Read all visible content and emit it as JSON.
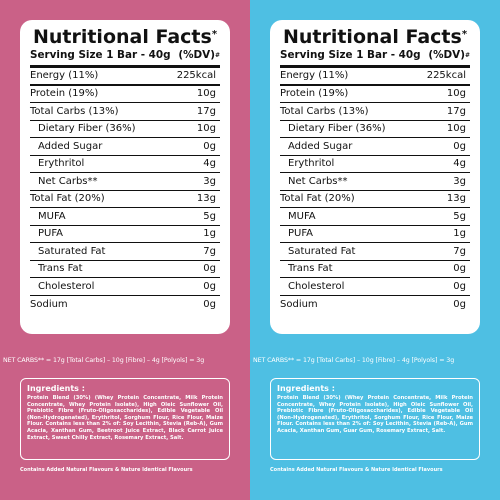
{
  "colors": {
    "left_bg": "#ca6187",
    "right_bg": "#4ebfe3",
    "card_bg": "#ffffff",
    "text": "#111111"
  },
  "panels": [
    {
      "title": "Nutritional Facts",
      "title_mark": "*",
      "serving_label": "Serving Size 1 Bar - 40g",
      "dv_label": "(%DV)",
      "dv_mark": "#",
      "rows": [
        {
          "label": "Energy (11%)",
          "value": "225kcal"
        },
        {
          "label": "Protein (19%)",
          "value": "10g"
        },
        {
          "label": "Total Carbs (13%)",
          "value": "17g"
        },
        {
          "label": "Dietary Fiber (36%)",
          "value": "10g"
        },
        {
          "label": "Added Sugar",
          "value": "0g"
        },
        {
          "label": "Erythritol",
          "value": "4g"
        },
        {
          "label": "Net Carbs**",
          "value": "3g"
        },
        {
          "label": "Total Fat (20%)",
          "value": "13g"
        },
        {
          "label": "MUFA",
          "value": "5g"
        },
        {
          "label": "PUFA",
          "value": "1g"
        },
        {
          "label": "Saturated Fat",
          "value": "7g"
        },
        {
          "label": "Trans Fat",
          "value": "0g"
        },
        {
          "label": "Cholesterol",
          "value": "0g"
        },
        {
          "label": "Sodium",
          "value": "0g"
        }
      ],
      "net_carbs_note": "NET CARBS** = 17g [Total Carbs] – 10g [Fibre] – 4g [Polyols] = 3g",
      "ingredients_title": "Ingredients :",
      "ingredients_text": "Protein Blend (30%) (Whey Protein Concentrate, Milk Protein Concentrate, Whey Protein Isolate), High Oleic Sunflower Oil, Prebiotic Fibre (Fruto-Oligosaccharides), Edible Vegetable Oil (Non-Hydrogenated), Erythritol, Sorghum Flour, Rice Flour, Maize Flour. Contains less than 2% of: Soy Lecithin, Stevia (Reb-A), Gum Acacia, Xanthan Gum, Beetroot Juice Extract, Black Carrot Juice Extract, Sweet Chilly Extract, Rosemary Extract, Salt.",
      "contains_note": "Contains Added Natural Flavours & Nature Identical Flavours"
    },
    {
      "title": "Nutritional Facts",
      "title_mark": "*",
      "serving_label": "Serving Size 1 Bar - 40g",
      "dv_label": "(%DV)",
      "dv_mark": "#",
      "rows": [
        {
          "label": "Energy (11%)",
          "value": "225kcal"
        },
        {
          "label": "Protein (19%)",
          "value": "10g"
        },
        {
          "label": "Total Carbs (13%)",
          "value": "17g"
        },
        {
          "label": "Dietary Fiber (36%)",
          "value": "10g"
        },
        {
          "label": "Added Sugar",
          "value": "0g"
        },
        {
          "label": "Erythritol",
          "value": "4g"
        },
        {
          "label": "Net Carbs**",
          "value": "3g"
        },
        {
          "label": "Total Fat (20%)",
          "value": "13g"
        },
        {
          "label": "MUFA",
          "value": "5g"
        },
        {
          "label": "PUFA",
          "value": "1g"
        },
        {
          "label": "Saturated Fat",
          "value": "7g"
        },
        {
          "label": "Trans Fat",
          "value": "0g"
        },
        {
          "label": "Cholesterol",
          "value": "0g"
        },
        {
          "label": "Sodium",
          "value": "0g"
        }
      ],
      "net_carbs_note": "NET CARBS** = 17g [Total Carbs] – 10g [Fibre] – 4g [Polyols] = 3g",
      "ingredients_title": "Ingredients :",
      "ingredients_text": "Protein Blend (30%) (Whey Protein Concentrate, Milk Protein Concentrate, Whey Protein Isolate), High Oleic Sunflower Oil, Prebiotic Fibre (Fruto-Oligosaccharides), Edible Vegetable Oil (Non-Hydrogenated), Erythritol, Sorghum Flour, Rice Flour, Maize Flour. Contains less than 2% of: Soy Lecithin, Stevia (Reb-A), Gum Acacia, Xanthan Gum, Guar Gum, Rosemary Extract, Salt.",
      "contains_note": "Contains Added Natural Flavours & Nature Identical Flavours"
    }
  ]
}
